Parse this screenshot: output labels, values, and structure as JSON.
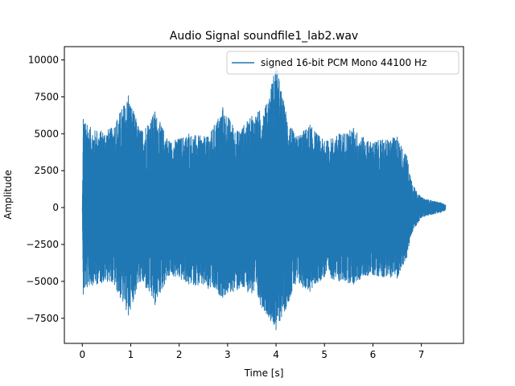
{
  "chart_data": {
    "type": "line",
    "title": "Audio Signal soundfile1_lab2.wav",
    "xlabel": "Time [s]",
    "ylabel": "Amplitude",
    "xlim": [
      -0.37,
      7.87
    ],
    "ylim": [
      -9200,
      10900
    ],
    "xticks": [
      0,
      1,
      2,
      3,
      4,
      5,
      6,
      7
    ],
    "yticks": [
      -7500,
      -5000,
      -2500,
      0,
      2500,
      5000,
      7500,
      10000
    ],
    "grid": false,
    "legend_position": "top-right",
    "series": [
      {
        "name": "signed 16-bit PCM Mono 44100 Hz",
        "color": "#1f77b4",
        "envelope_time": [
          0.0,
          0.02,
          0.1,
          0.3,
          0.6,
          0.95,
          1.2,
          1.5,
          1.8,
          2.2,
          2.6,
          2.9,
          3.2,
          3.5,
          3.8,
          4.0,
          4.2,
          4.4,
          4.7,
          5.0,
          5.3,
          5.6,
          5.9,
          6.2,
          6.5,
          6.7,
          6.8,
          6.9,
          7.0,
          7.2,
          7.4,
          7.5
        ],
        "envelope_upper": [
          0,
          6000,
          5600,
          5200,
          5400,
          7600,
          5200,
          6500,
          4500,
          5000,
          4800,
          6800,
          5200,
          6200,
          7000,
          9800,
          6500,
          4800,
          5600,
          4500,
          5000,
          5400,
          4500,
          4600,
          4800,
          3500,
          1800,
          1100,
          700,
          500,
          350,
          200
        ],
        "envelope_lower": [
          0,
          -5900,
          -5400,
          -5200,
          -5000,
          -7300,
          -5000,
          -6600,
          -4600,
          -5200,
          -5500,
          -6100,
          -5600,
          -5800,
          -7200,
          -8300,
          -6900,
          -5200,
          -5700,
          -4700,
          -5000,
          -5200,
          -4600,
          -4700,
          -4800,
          -3400,
          -1800,
          -1200,
          -700,
          -500,
          -350,
          -200
        ]
      }
    ]
  }
}
